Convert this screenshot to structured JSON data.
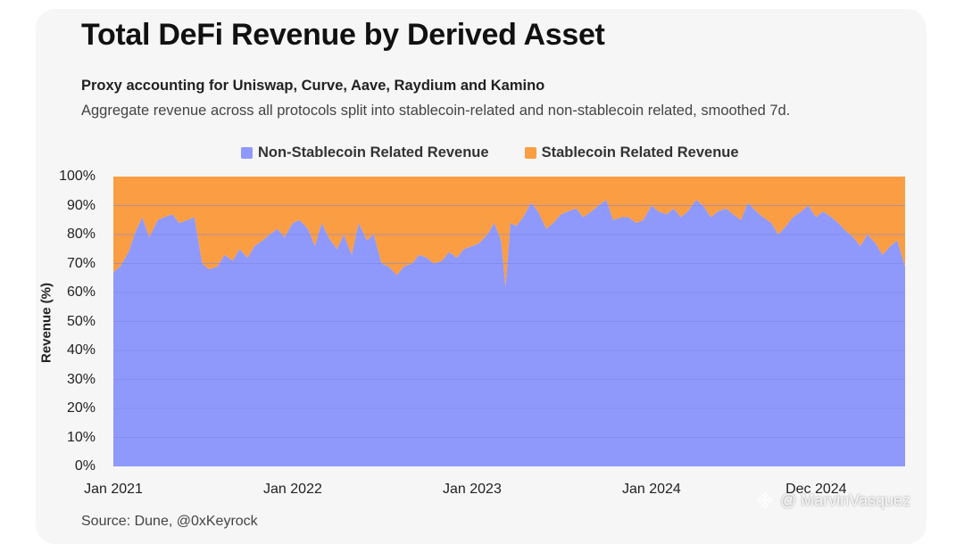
{
  "title": "Total DeFi Revenue by Derived Asset",
  "subtitle": "Proxy accounting for Uniswap, Curve, Aave, Raydium and Kamino",
  "description": "Aggregate revenue across all protocols split into stablecoin-related and non-stablecoin related, smoothed 7d.",
  "source": "Source: Dune, @0xKeyrock",
  "watermark": "@ MarvinVasquez",
  "colors": {
    "background": "#f6f6f6",
    "non_stablecoin": "#8f99fb",
    "stablecoin": "#fa9d43",
    "gridline": "#7f86e0",
    "title": "#111111"
  },
  "chart_data": {
    "type": "area",
    "stacked": true,
    "percent_stacked": true,
    "title": "Total DeFi Revenue by Derived Asset",
    "ylabel": "Revenue (%)",
    "xlabel": "",
    "ylim": [
      0,
      100
    ],
    "xlim": [
      "2021-01-01",
      "2025-05-31"
    ],
    "grid": true,
    "legend_position": "top",
    "y_ticks": [
      "0%",
      "10%",
      "20%",
      "30%",
      "40%",
      "50%",
      "60%",
      "70%",
      "80%",
      "90%",
      "100%"
    ],
    "x_ticks": [
      {
        "date": "2021-01-01",
        "label": "Jan 2021"
      },
      {
        "date": "2022-01-01",
        "label": "Jan 2022"
      },
      {
        "date": "2023-01-01",
        "label": "Jan 2023"
      },
      {
        "date": "2024-01-01",
        "label": "Jan 2024"
      },
      {
        "date": "2024-12-01",
        "label": "Dec 2024"
      }
    ],
    "dates": [
      "2021-01-01",
      "2021-01-15",
      "2021-02-01",
      "2021-02-15",
      "2021-03-01",
      "2021-03-15",
      "2021-04-01",
      "2021-04-15",
      "2021-05-01",
      "2021-05-15",
      "2021-06-01",
      "2021-06-15",
      "2021-07-01",
      "2021-07-15",
      "2021-08-01",
      "2021-08-15",
      "2021-09-01",
      "2021-09-15",
      "2021-10-01",
      "2021-10-15",
      "2021-11-01",
      "2021-11-15",
      "2021-12-01",
      "2021-12-15",
      "2022-01-01",
      "2022-01-15",
      "2022-02-01",
      "2022-02-15",
      "2022-03-01",
      "2022-03-15",
      "2022-04-01",
      "2022-04-15",
      "2022-05-01",
      "2022-05-15",
      "2022-06-01",
      "2022-06-15",
      "2022-07-01",
      "2022-07-15",
      "2022-08-01",
      "2022-08-15",
      "2022-09-01",
      "2022-09-15",
      "2022-10-01",
      "2022-10-15",
      "2022-11-01",
      "2022-11-15",
      "2022-12-01",
      "2022-12-15",
      "2023-01-01",
      "2023-01-15",
      "2023-02-01",
      "2023-02-15",
      "2023-03-01",
      "2023-03-10",
      "2023-03-20",
      "2023-04-01",
      "2023-04-15",
      "2023-05-01",
      "2023-05-15",
      "2023-06-01",
      "2023-06-15",
      "2023-07-01",
      "2023-07-15",
      "2023-08-01",
      "2023-08-15",
      "2023-09-01",
      "2023-09-15",
      "2023-10-01",
      "2023-10-15",
      "2023-11-01",
      "2023-11-15",
      "2023-12-01",
      "2023-12-15",
      "2024-01-01",
      "2024-01-15",
      "2024-02-01",
      "2024-02-15",
      "2024-03-01",
      "2024-03-15",
      "2024-04-01",
      "2024-04-15",
      "2024-05-01",
      "2024-05-15",
      "2024-06-01",
      "2024-06-15",
      "2024-07-01",
      "2024-07-15",
      "2024-08-01",
      "2024-08-15",
      "2024-09-01",
      "2024-09-15",
      "2024-10-01",
      "2024-10-15",
      "2024-11-01",
      "2024-11-15",
      "2024-12-01",
      "2024-12-15",
      "2025-01-01",
      "2025-01-15",
      "2025-02-01",
      "2025-02-15",
      "2025-03-01",
      "2025-03-15",
      "2025-04-01",
      "2025-04-15",
      "2025-05-01",
      "2025-05-15",
      "2025-05-31"
    ],
    "series": [
      {
        "name": "Non-Stablecoin Related Revenue",
        "color": "#8f99fb",
        "values": [
          67,
          69,
          74,
          81,
          86,
          79,
          85,
          86,
          87,
          84,
          85,
          86,
          70,
          68,
          69,
          73,
          71,
          75,
          72,
          76,
          78,
          80,
          82,
          79,
          84,
          85,
          82,
          76,
          84,
          79,
          75,
          80,
          73,
          84,
          78,
          80,
          70,
          69,
          66,
          69,
          70,
          73,
          72,
          70,
          71,
          74,
          72,
          75,
          76,
          77,
          80,
          84,
          78,
          62,
          84,
          83,
          86,
          91,
          88,
          82,
          84,
          87,
          88,
          89,
          86,
          88,
          90,
          92,
          85,
          86,
          86,
          84,
          85,
          90,
          88,
          87,
          89,
          86,
          88,
          92,
          90,
          86,
          88,
          89,
          87,
          85,
          91,
          88,
          86,
          84,
          80,
          83,
          86,
          88,
          90,
          86,
          88,
          86,
          84,
          81,
          79,
          76,
          80,
          77,
          73,
          76,
          78,
          69
        ]
      },
      {
        "name": "Stablecoin Related Revenue",
        "color": "#fa9d43",
        "values": [
          33,
          31,
          26,
          19,
          14,
          21,
          15,
          14,
          13,
          16,
          15,
          14,
          30,
          32,
          31,
          27,
          29,
          25,
          28,
          24,
          22,
          20,
          18,
          21,
          16,
          15,
          18,
          24,
          16,
          21,
          25,
          20,
          27,
          16,
          22,
          20,
          30,
          31,
          34,
          31,
          30,
          27,
          28,
          30,
          29,
          26,
          28,
          25,
          24,
          23,
          20,
          16,
          22,
          38,
          16,
          17,
          14,
          9,
          12,
          18,
          16,
          13,
          12,
          11,
          14,
          12,
          10,
          8,
          15,
          14,
          14,
          16,
          15,
          10,
          12,
          13,
          11,
          14,
          12,
          8,
          10,
          14,
          12,
          11,
          13,
          15,
          9,
          12,
          14,
          16,
          20,
          17,
          14,
          12,
          10,
          14,
          12,
          14,
          16,
          19,
          21,
          24,
          20,
          23,
          27,
          24,
          22,
          31
        ]
      }
    ]
  }
}
